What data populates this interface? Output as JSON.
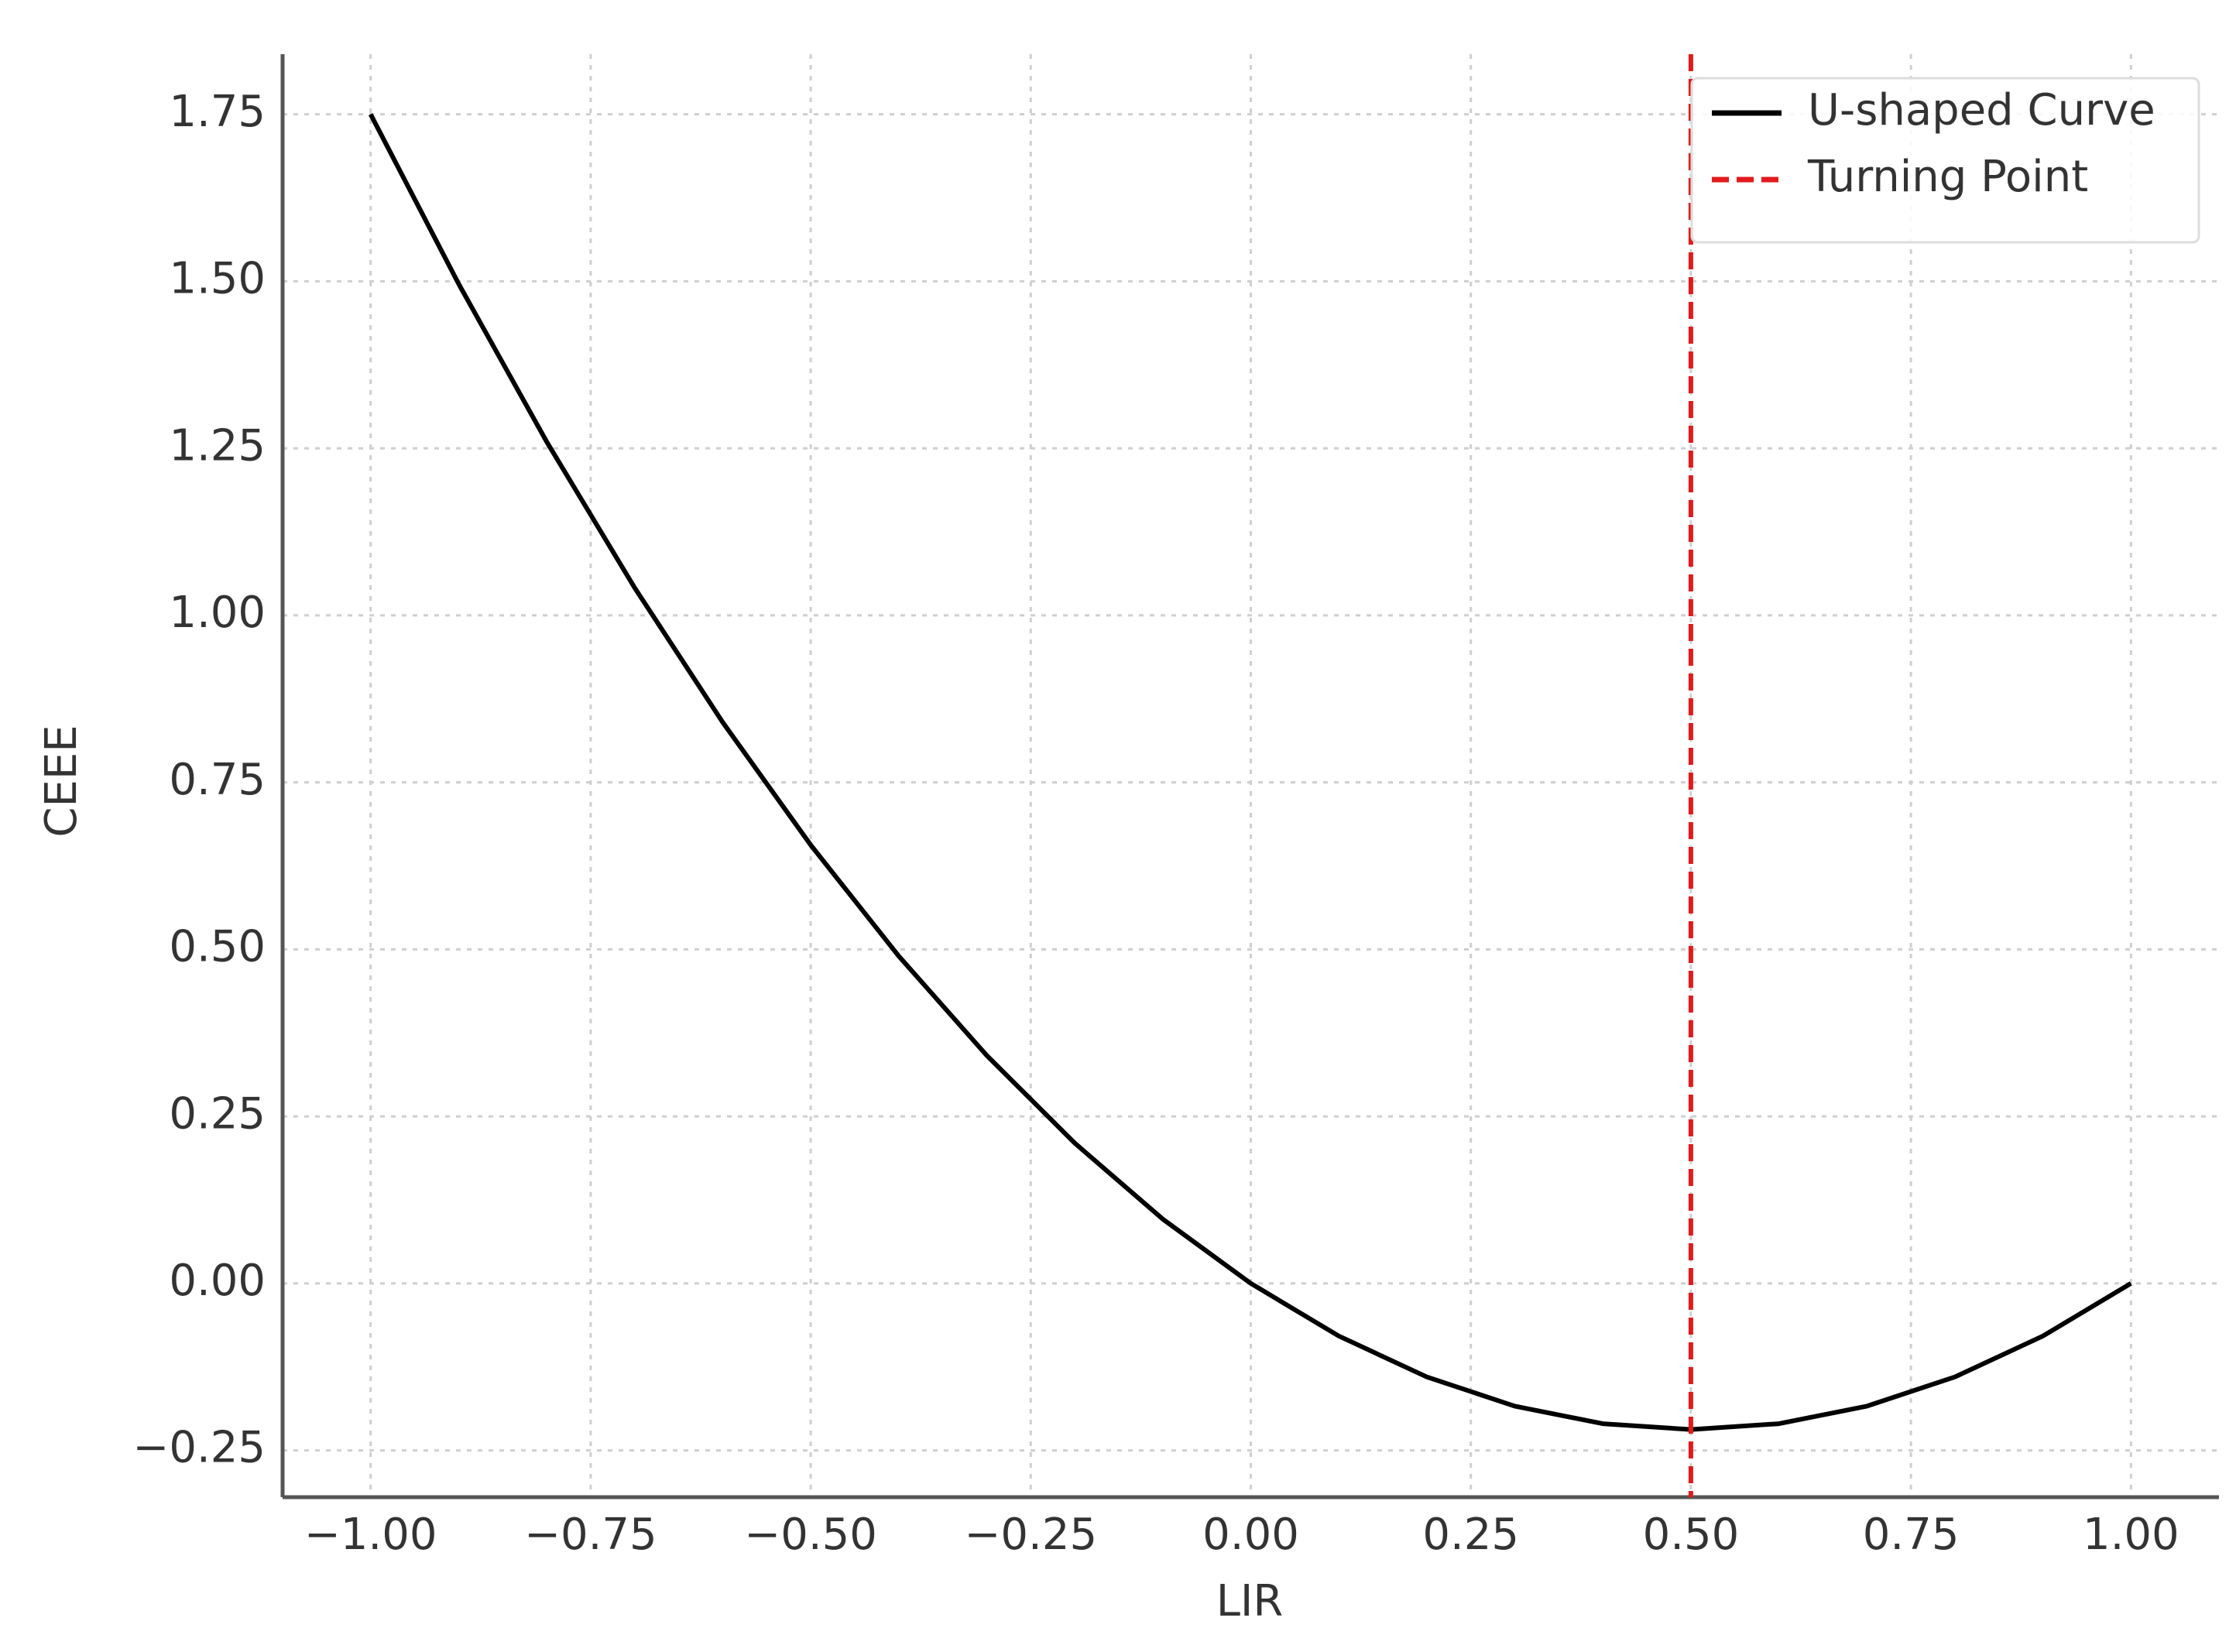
{
  "chart_data": {
    "type": "line",
    "xlabel": "LIR",
    "ylabel": "CEEE",
    "x": [
      -1.0,
      -0.9,
      -0.8,
      -0.7,
      -0.6,
      -0.5,
      -0.4,
      -0.3,
      -0.2,
      -0.1,
      0.0,
      0.1,
      0.2,
      0.3,
      0.4,
      0.5,
      0.6,
      0.7,
      0.8,
      0.9,
      1.0
    ],
    "series": [
      {
        "name": "U-shaped Curve",
        "color": "#000000",
        "values": [
          1.75,
          1.49625,
          1.26,
          1.04125,
          0.84,
          0.65625,
          0.49,
          0.34125,
          0.21,
          0.09625,
          0.0,
          -0.07875,
          -0.14,
          -0.18375,
          -0.21,
          -0.21875,
          -0.21,
          -0.18375,
          -0.14,
          -0.07875,
          0.0
        ]
      }
    ],
    "vline": {
      "name": "Turning Point",
      "x": 0.5,
      "color": "#e31a1c",
      "dashed": true
    },
    "xlim": [
      -1.1,
      1.1
    ],
    "ylim": [
      -0.32,
      1.84
    ],
    "xticks": [
      {
        "value": -1.0,
        "label": "−1.00"
      },
      {
        "value": -0.75,
        "label": "−0.75"
      },
      {
        "value": -0.5,
        "label": "−0.50"
      },
      {
        "value": -0.25,
        "label": "−0.25"
      },
      {
        "value": 0,
        "label": "0.00"
      },
      0.25,
      {
        "value": 0.5,
        "label": "0.50"
      },
      0.75,
      {
        "value": 1,
        "label": "1.00"
      }
    ],
    "yticks": [
      {
        "value": -0.25,
        "label": "−0.25"
      },
      {
        "value": 0,
        "label": "0.00"
      },
      0.25,
      {
        "value": 0.5,
        "label": "0.50"
      },
      0.75,
      {
        "value": 1,
        "label": "1.00"
      },
      1.25,
      {
        "value": 1.5,
        "label": "1.50"
      },
      1.75
    ],
    "grid": true,
    "legend": "upper-right"
  }
}
